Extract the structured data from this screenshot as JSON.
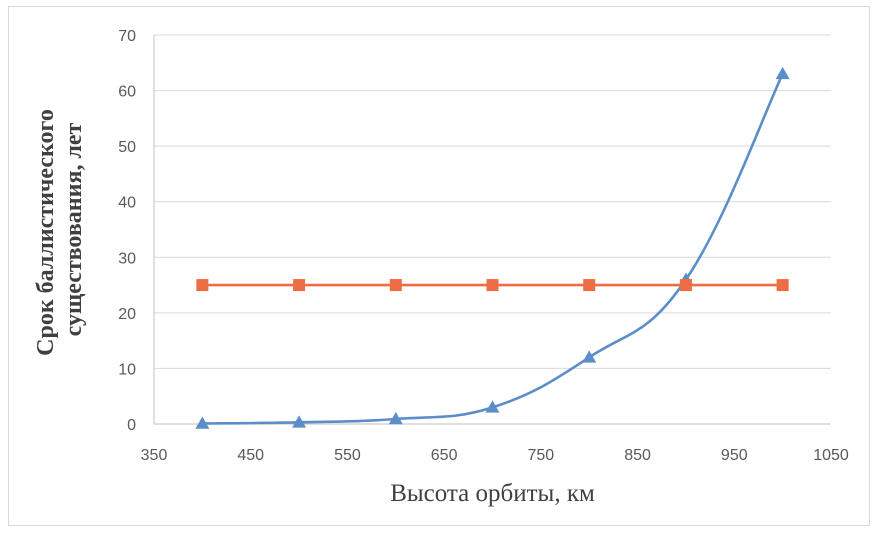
{
  "chart_data": {
    "type": "line",
    "xlabel": "Высота орбиты, км",
    "ylabel": [
      "Срок баллистического",
      "существования, лет"
    ],
    "xlim": [
      350,
      1050
    ],
    "ylim": [
      0,
      70
    ],
    "x_ticks": [
      350,
      450,
      550,
      650,
      750,
      850,
      950,
      1050
    ],
    "y_ticks": [
      0,
      10,
      20,
      30,
      40,
      50,
      60,
      70
    ],
    "grid": "horizontal",
    "legend": "none",
    "series": [
      {
        "color": "#5b8ec9",
        "marker": "triangle",
        "smooth": true,
        "x": [
          400,
          500,
          600,
          700,
          800,
          900,
          1000
        ],
        "values": [
          0.1,
          0.3,
          0.9,
          3,
          12,
          26,
          63
        ]
      },
      {
        "color": "#ed6d45",
        "marker": "square",
        "smooth": false,
        "x": [
          400,
          500,
          600,
          700,
          800,
          900,
          1000
        ],
        "values": [
          25,
          25,
          25,
          25,
          25,
          25,
          25
        ]
      }
    ]
  }
}
